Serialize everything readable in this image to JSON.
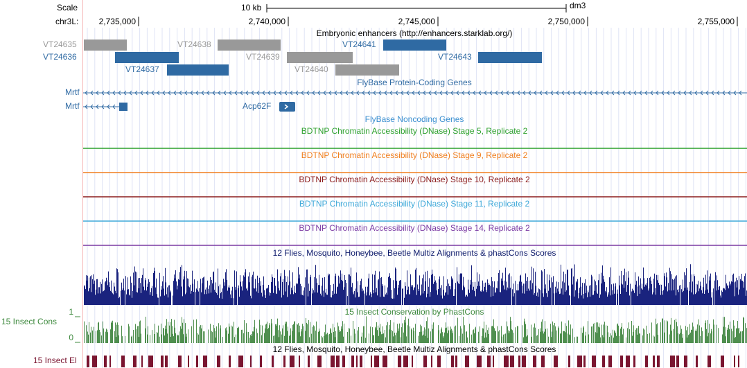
{
  "header": {
    "scale_label": "Scale",
    "scale_bar": "10 kb",
    "assembly": "dm3",
    "chrom": "chr3L:",
    "positions": [
      "2,735,000",
      "2,740,000",
      "2,745,000",
      "2,750,000",
      "2,755,000"
    ]
  },
  "enhancers": {
    "title": "Embryonic enhancers (http://enhancers.starklab.org/)",
    "items": [
      "VT24635",
      "VT24636",
      "VT24637",
      "VT24638",
      "VT24639",
      "VT24640",
      "VT24641",
      "VT24643"
    ]
  },
  "genes": {
    "title": "FlyBase Protein-Coding Genes",
    "items": [
      "Mrtf",
      "Mrtf",
      "Acp62F"
    ]
  },
  "noncoding": {
    "title": "FlyBase Noncoding Genes"
  },
  "dnase": [
    "BDTNP Chromatin Accessibility (DNase) Stage 5, Replicate 2",
    "BDTNP Chromatin Accessibility (DNase) Stage 9, Replicate 2",
    "BDTNP Chromatin Accessibility (DNase) Stage 10, Replicate 2",
    "BDTNP Chromatin Accessibility (DNase) Stage 11, Replicate 2",
    "BDTNP Chromatin Accessibility (DNase) Stage 14, Replicate 2"
  ],
  "multiz": {
    "title": "12 Flies, Mosquito, Honeybee, Beetle Multiz Alignments & phastCons Scores"
  },
  "conservation": {
    "title": "15 Insect Conservation by PhastCons",
    "label": "15 Insect Cons",
    "ymax": 1,
    "ymin": 0
  },
  "multiz2": {
    "title": "12 Flies, Mosquito, Honeybee, Beetle Multiz Alignments & phastCons Scores"
  },
  "elements": {
    "label": "15 Insect El"
  }
}
